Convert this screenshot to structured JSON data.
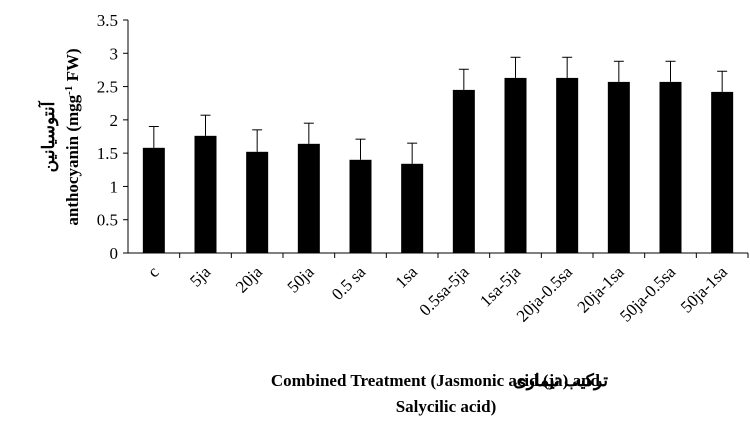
{
  "chart_data": {
    "type": "bar",
    "ylabel": [
      "آنتوسیانین",
      "anthocyanin (mgg",
      "-1",
      " FW)"
    ],
    "xlabel": [
      "ترکیب تیماری",
      "Combined Treatment (Jasmonic acid (ja) and",
      "Salycilic acid)"
    ],
    "categories": [
      "c",
      "5ja",
      "20ja",
      "50ja",
      "0.5 sa",
      "1sa",
      "0.5sa-5ja",
      "1sa-5ja",
      "20ja-0.5sa",
      "20ja-1sa",
      "50ja-0.5sa",
      "50ja-1sa"
    ],
    "values": [
      1.58,
      1.76,
      1.52,
      1.64,
      1.4,
      1.34,
      2.45,
      2.63,
      2.63,
      2.57,
      2.57,
      2.42
    ],
    "errors": [
      0.32,
      0.31,
      0.33,
      0.31,
      0.31,
      0.31,
      0.31,
      0.31,
      0.31,
      0.31,
      0.31,
      0.31
    ],
    "color": "#000000",
    "ylim": [
      0,
      3.5
    ],
    "yticks": [
      0,
      0.5,
      1,
      1.5,
      2,
      2.5,
      3,
      3.5
    ]
  }
}
